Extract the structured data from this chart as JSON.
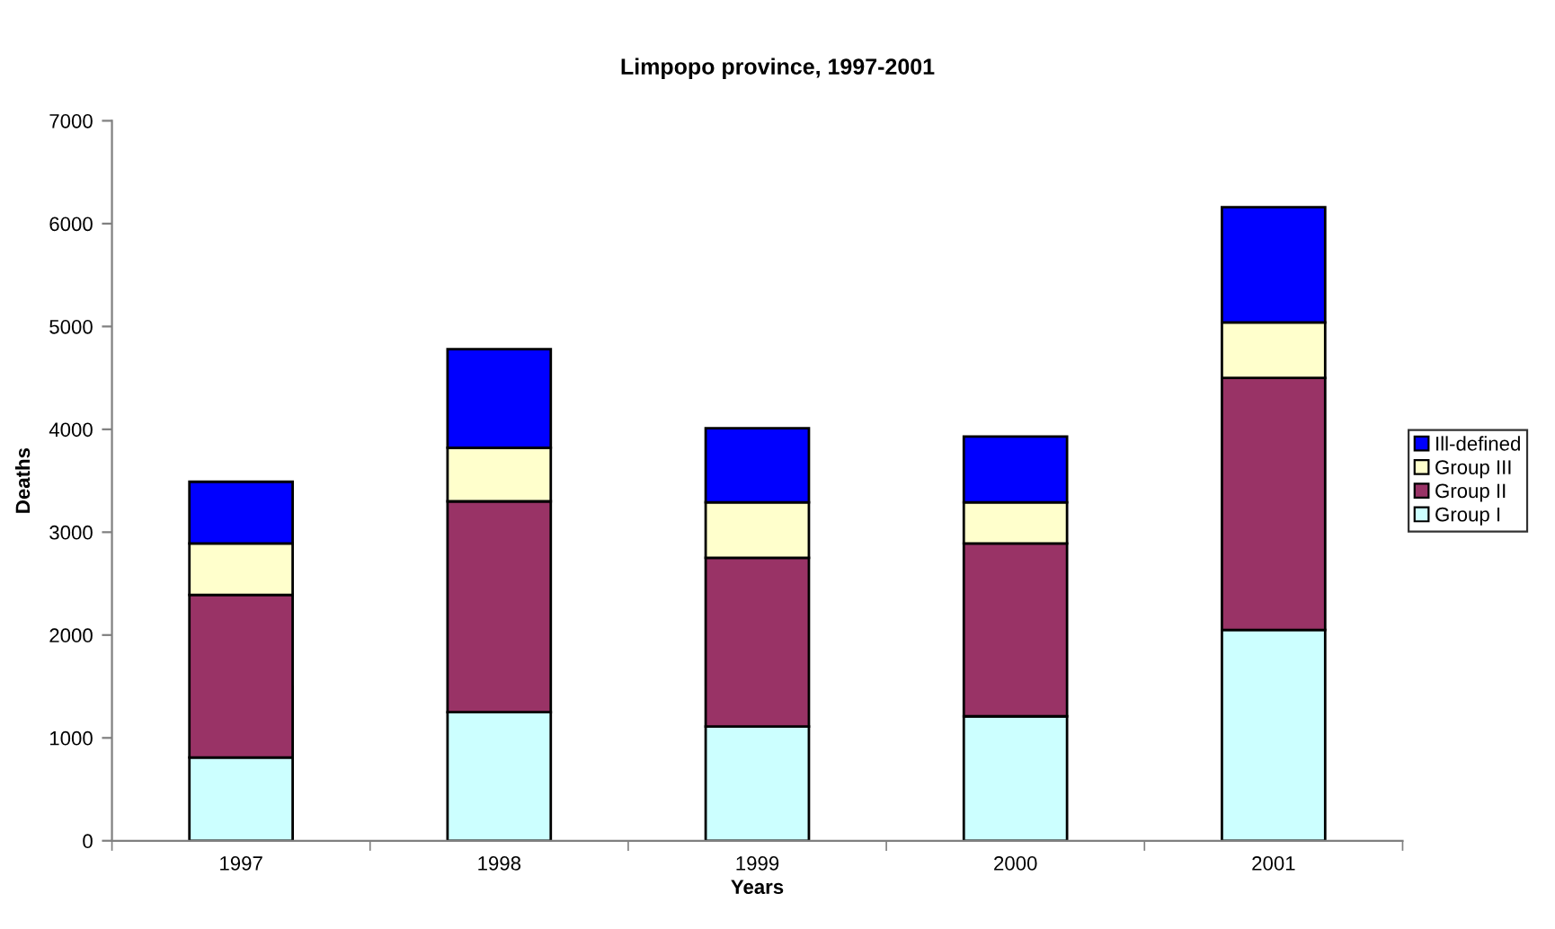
{
  "chart_data": {
    "type": "bar",
    "title": "Limpopo province, 1997-2001",
    "xlabel": "Years",
    "ylabel": "Deaths",
    "categories": [
      "1997",
      "1998",
      "1999",
      "2000",
      "2001"
    ],
    "stacked": true,
    "series": [
      {
        "name": "Group I",
        "color": "#ccffff",
        "values": [
          810,
          1250,
          1110,
          1210,
          2050
        ]
      },
      {
        "name": "Group II",
        "color": "#993366",
        "values": [
          1580,
          2050,
          1640,
          1680,
          2450
        ]
      },
      {
        "name": "Group III",
        "color": "#ffffcc",
        "values": [
          500,
          520,
          540,
          400,
          540
        ]
      },
      {
        "name": "Ill-defined",
        "color": "#0000ff",
        "values": [
          600,
          960,
          720,
          640,
          1120
        ]
      }
    ],
    "ylim": [
      0,
      7000
    ],
    "yticks": [
      0,
      1000,
      2000,
      3000,
      4000,
      5000,
      6000,
      7000
    ],
    "grid": false,
    "legend": "right"
  }
}
